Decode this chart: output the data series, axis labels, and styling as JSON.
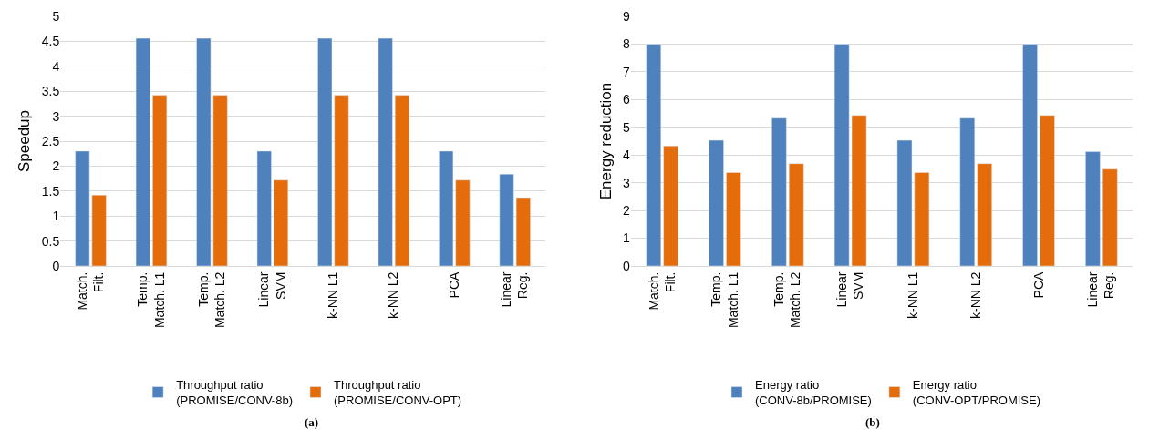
{
  "chart_data": [
    {
      "type": "bar",
      "ylabel": "Speedup",
      "categories": [
        "Match.\nFilt.",
        "Temp.\nMatch. L1",
        "Temp.\nMatch. L2",
        "Linear\nSVM",
        "k-NN L1",
        "k-NN L2",
        "PCA",
        "Linear\nReg."
      ],
      "series": [
        {
          "name": "Throughput ratio\n(PROMISE/CONV-8b)",
          "color": "#4f81bd",
          "values": [
            2.3,
            4.56,
            4.56,
            2.3,
            4.56,
            4.56,
            2.3,
            1.84
          ]
        },
        {
          "name": "Throughput ratio\n(PROMISE/CONV-OPT)",
          "color": "#e46c0a",
          "values": [
            1.42,
            3.42,
            3.42,
            1.72,
            3.42,
            3.42,
            1.72,
            1.37
          ]
        }
      ],
      "ylim": [
        0,
        5
      ],
      "yticks": [
        0,
        0.5,
        1,
        1.5,
        2,
        2.5,
        3,
        3.5,
        4,
        4.5,
        5
      ],
      "grid": "y",
      "legend": "bottom",
      "annotations": [
        "(a)"
      ]
    },
    {
      "type": "bar",
      "ylabel": "Energy reduction",
      "categories": [
        "Match.\nFilt.",
        "Temp.\nMatch. L1",
        "Temp.\nMatch. L2",
        "Linear\nSVM",
        "k-NN L1",
        "k-NN L2",
        "PCA",
        "Linear\nReg."
      ],
      "series": [
        {
          "name": "Energy ratio\n(CONV-8b/PROMISE)",
          "color": "#4f81bd",
          "values": [
            8,
            4.53,
            5.33,
            8,
            4.53,
            5.33,
            8,
            4.12
          ]
        },
        {
          "name": "Energy ratio\n(CONV-OPT/PROMISE)",
          "color": "#e46c0a",
          "values": [
            4.33,
            3.37,
            3.69,
            5.43,
            3.37,
            3.69,
            5.43,
            3.49
          ]
        }
      ],
      "ylim": [
        0,
        9
      ],
      "yticks": [
        0,
        1,
        2,
        3,
        4,
        5,
        6,
        7,
        8,
        9
      ],
      "grid": "y",
      "legend": "bottom",
      "annotations": [
        "(b)"
      ]
    }
  ]
}
